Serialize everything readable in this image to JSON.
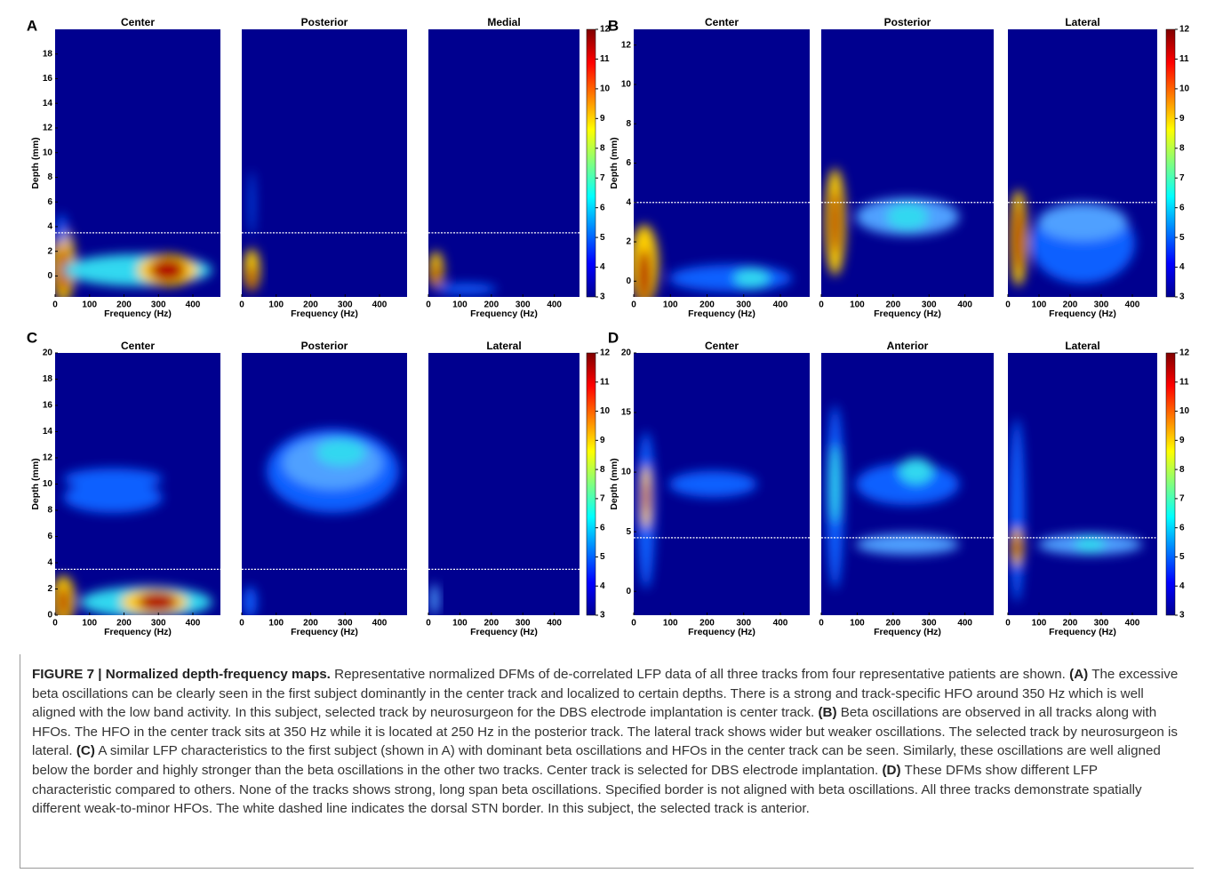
{
  "figure": {
    "panels": [
      {
        "letter": "A",
        "titles": [
          "Center",
          "Posterior",
          "Medial"
        ],
        "x_label": "Frequency (Hz)",
        "y_label": "Depth (mm)",
        "xlim": [
          0,
          480
        ],
        "xticks": [
          0,
          100,
          200,
          300,
          400
        ],
        "ylim": [
          -1.7,
          20
        ],
        "yticks": [
          0,
          2,
          4,
          6,
          8,
          10,
          12,
          14,
          16,
          18
        ],
        "border_depth": 3.5,
        "colorbar_lim": [
          3,
          12
        ],
        "colorbar_ticks": [
          3,
          4,
          5,
          6,
          7,
          8,
          9,
          10,
          11,
          12
        ]
      },
      {
        "letter": "B",
        "titles": [
          "Center",
          "Posterior",
          "Lateral"
        ],
        "x_label": "Frequency (Hz)",
        "y_label": "Depth (mm)",
        "xlim": [
          0,
          480
        ],
        "xticks": [
          0,
          100,
          200,
          300,
          400
        ],
        "ylim": [
          -0.8,
          12.8
        ],
        "yticks": [
          0,
          2,
          4,
          6,
          8,
          10,
          12
        ],
        "border_depth": 4,
        "colorbar_lim": [
          3,
          12
        ],
        "colorbar_ticks": [
          3,
          4,
          5,
          6,
          7,
          8,
          9,
          10,
          11,
          12
        ]
      },
      {
        "letter": "C",
        "titles": [
          "Center",
          "Posterior",
          "Lateral"
        ],
        "x_label": "Frequency (Hz)",
        "y_label": "Depth (mm)",
        "xlim": [
          0,
          480
        ],
        "xticks": [
          0,
          100,
          200,
          300,
          400
        ],
        "ylim": [
          0,
          20
        ],
        "yticks": [
          0,
          2,
          4,
          6,
          8,
          10,
          12,
          14,
          16,
          18,
          20
        ],
        "border_depth": 3.5,
        "colorbar_lim": [
          3,
          12
        ],
        "colorbar_ticks": [
          3,
          4,
          5,
          6,
          7,
          8,
          9,
          10,
          11,
          12
        ]
      },
      {
        "letter": "D",
        "titles": [
          "Center",
          "Anterior",
          "Lateral"
        ],
        "x_label": "Frequency (Hz)",
        "y_label": "Depth (mm)",
        "xlim": [
          0,
          480
        ],
        "xticks": [
          0,
          100,
          200,
          300,
          400
        ],
        "ylim": [
          -2,
          20
        ],
        "yticks": [
          0,
          5,
          10,
          15,
          20
        ],
        "border_depth": 4.5,
        "colorbar_lim": [
          3,
          12
        ],
        "colorbar_ticks": [
          3,
          4,
          5,
          6,
          7,
          8,
          9,
          10,
          11,
          12
        ]
      }
    ],
    "caption": {
      "title": "FIGURE 7 | Normalized depth-frequency maps.",
      "intro": "Representative normalized DFMs of de-correlated LFP data of all three tracks from four representative patients are shown.",
      "parts": [
        {
          "label": "(A)",
          "text": "The excessive beta oscillations can be clearly seen in the first subject dominantly in the center track and localized to certain depths. There is a strong and track-specific HFO around 350 Hz which is well aligned with the low band activity. In this subject, selected track by neurosurgeon for the DBS electrode implantation is center track."
        },
        {
          "label": "(B)",
          "text": "Beta oscillations are observed in all tracks along with HFOs. The HFO in the center track sits at 350 Hz while it is located at 250 Hz in the posterior track. The lateral track shows wider but weaker oscillations. The selected track by neurosurgeon is lateral."
        },
        {
          "label": "(C)",
          "text": "A similar LFP characteristics to the first subject (shown in A) with dominant beta oscillations and HFOs in the center track can be seen. Similarly, these oscillations are well aligned below the border and highly stronger than the beta oscillations in the other two tracks. Center track is selected for DBS electrode implantation."
        },
        {
          "label": "(D)",
          "text": "These DFMs show different LFP characteristic compared to others. None of the tracks shows strong, long span beta oscillations. Specified border is not aligned with beta oscillations. All three tracks demonstrate spatially different weak-to-minor HFOs. The white dashed line indicates the dorsal STN border. In this subject, the selected track is anterior."
        }
      ]
    }
  }
}
